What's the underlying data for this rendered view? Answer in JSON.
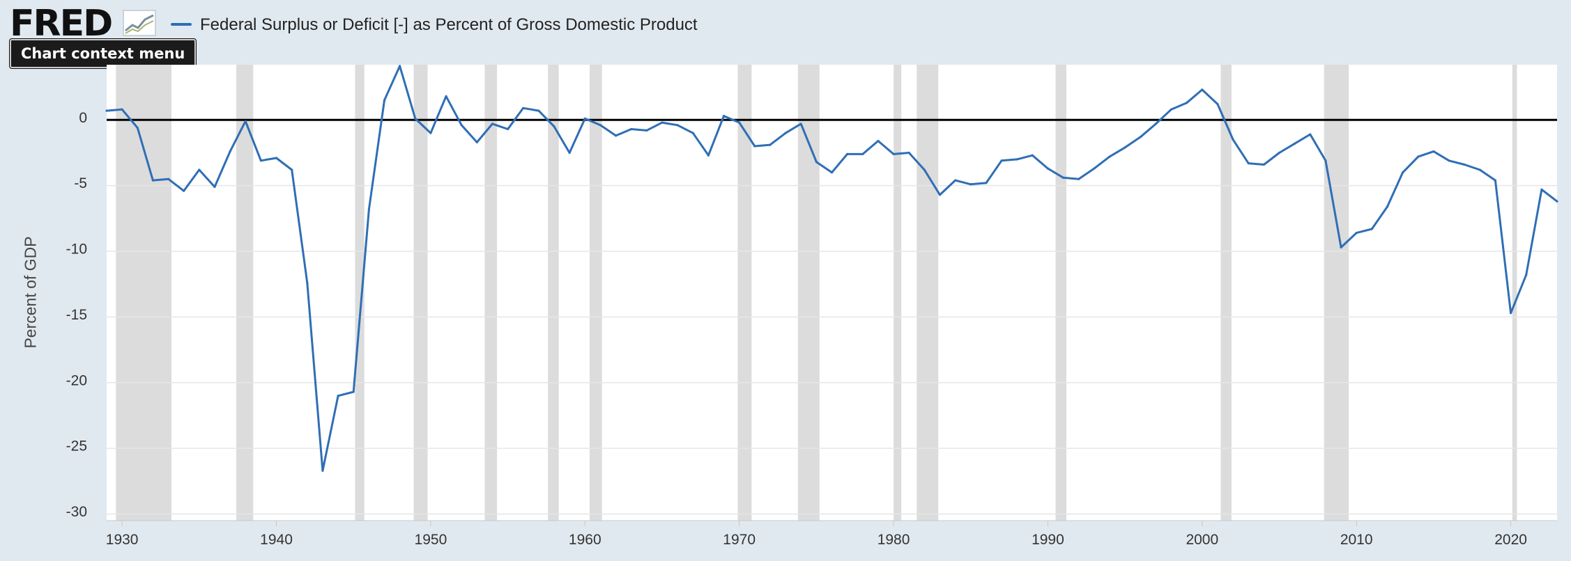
{
  "header": {
    "logo_text": "FRED",
    "context_menu_label": "Chart context menu"
  },
  "colors": {
    "series": "#2f6eb5",
    "recession_shade": "#dcdcdc",
    "plot_background": "#ffffff",
    "page_background": "#e1e9f0",
    "grid": "#e6e6e6",
    "zero_line": "#000000"
  },
  "chart_data": {
    "type": "line",
    "title": "",
    "ylabel": "Percent of GDP",
    "xlabel": "",
    "x_range": [
      1929,
      2023
    ],
    "ylim": [
      -30.5,
      4.2
    ],
    "y_ticks": [
      0,
      -5,
      -10,
      -15,
      -20,
      -25,
      -30
    ],
    "y_tick_labels": [
      "0",
      "-5",
      "-10",
      "-15",
      "-20",
      "-25",
      "-30"
    ],
    "x_ticks": [
      1930,
      1940,
      1950,
      1960,
      1970,
      1980,
      1990,
      2000,
      2010,
      2020
    ],
    "x_tick_labels": [
      "1930",
      "1940",
      "1950",
      "1960",
      "1970",
      "1980",
      "1990",
      "2000",
      "2010",
      "2020"
    ],
    "grid": "horizontal",
    "reference_line": 0,
    "legend_position": "top-left",
    "series": [
      {
        "name": "Federal Surplus or Deficit [-] as Percent of Gross Domestic Product",
        "color": "#2f6eb5",
        "x": [
          1929,
          1930,
          1931,
          1932,
          1933,
          1934,
          1935,
          1936,
          1937,
          1938,
          1939,
          1940,
          1941,
          1942,
          1943,
          1944,
          1945,
          1946,
          1947,
          1948,
          1949,
          1950,
          1951,
          1952,
          1953,
          1954,
          1955,
          1956,
          1957,
          1958,
          1959,
          1960,
          1961,
          1962,
          1963,
          1964,
          1965,
          1966,
          1967,
          1968,
          1969,
          1970,
          1971,
          1972,
          1973,
          1974,
          1975,
          1976,
          1977,
          1978,
          1979,
          1980,
          1981,
          1982,
          1983,
          1984,
          1985,
          1986,
          1987,
          1988,
          1989,
          1990,
          1991,
          1992,
          1993,
          1994,
          1995,
          1996,
          1997,
          1998,
          1999,
          2000,
          2001,
          2002,
          2003,
          2004,
          2005,
          2006,
          2007,
          2008,
          2009,
          2010,
          2011,
          2012,
          2013,
          2014,
          2015,
          2016,
          2017,
          2018,
          2019,
          2020,
          2021,
          2022,
          2023
        ],
        "y": [
          0.7,
          0.8,
          -0.6,
          -4.6,
          -4.5,
          -5.4,
          -3.8,
          -5.1,
          -2.4,
          -0.1,
          -3.1,
          -2.9,
          -3.8,
          -12.4,
          -26.7,
          -21.0,
          -20.7,
          -6.8,
          1.5,
          4.1,
          0.1,
          -1.0,
          1.8,
          -0.4,
          -1.7,
          -0.3,
          -0.7,
          0.9,
          0.7,
          -0.5,
          -2.5,
          0.1,
          -0.4,
          -1.2,
          -0.7,
          -0.8,
          -0.2,
          -0.4,
          -1.0,
          -2.7,
          0.3,
          -0.2,
          -2.0,
          -1.9,
          -1.0,
          -0.3,
          -3.2,
          -4.0,
          -2.6,
          -2.6,
          -1.6,
          -2.6,
          -2.5,
          -3.8,
          -5.7,
          -4.6,
          -4.9,
          -4.8,
          -3.1,
          -3.0,
          -2.7,
          -3.7,
          -4.4,
          -4.5,
          -3.7,
          -2.8,
          -2.1,
          -1.3,
          -0.3,
          0.8,
          1.3,
          2.3,
          1.2,
          -1.5,
          -3.3,
          -3.4,
          -2.5,
          -1.8,
          -1.1,
          -3.1,
          -9.7,
          -8.6,
          -8.3,
          -6.6,
          -4.0,
          -2.8,
          -2.4,
          -3.1,
          -3.4,
          -3.8,
          -4.6,
          -14.7,
          -11.8,
          -5.3,
          -6.2
        ]
      }
    ],
    "recessions": [
      [
        1929.6,
        1933.2
      ],
      [
        1937.4,
        1938.5
      ],
      [
        1945.1,
        1945.7
      ],
      [
        1948.9,
        1949.8
      ],
      [
        1953.5,
        1954.3
      ],
      [
        1957.6,
        1958.3
      ],
      [
        1960.3,
        1961.1
      ],
      [
        1969.9,
        1970.8
      ],
      [
        1973.8,
        1975.2
      ],
      [
        1980.0,
        1980.5
      ],
      [
        1981.5,
        1982.9
      ],
      [
        1990.5,
        1991.2
      ],
      [
        2001.2,
        2001.9
      ],
      [
        2007.9,
        2009.5
      ],
      [
        2020.1,
        2020.4
      ]
    ]
  }
}
